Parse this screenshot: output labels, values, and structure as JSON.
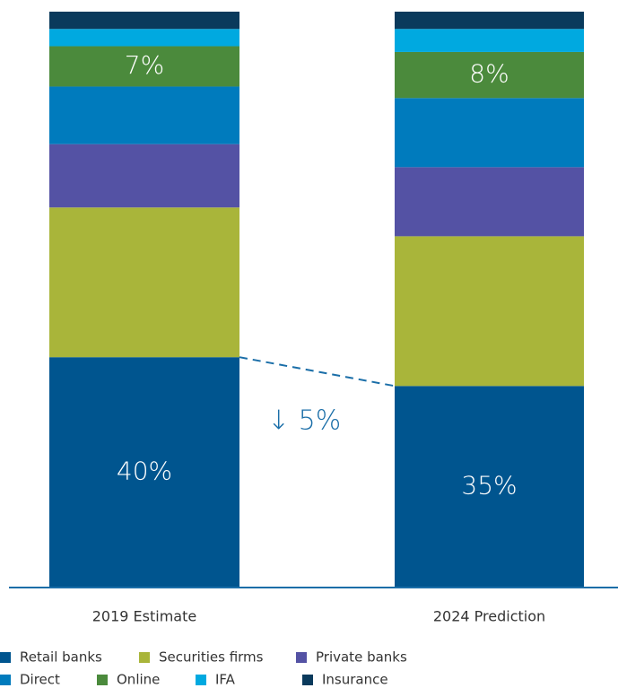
{
  "chart_data": {
    "type": "stacked_bar",
    "categories": [
      "2019 Estimate",
      "2024 Prediction"
    ],
    "series": [
      {
        "name": "Retail banks",
        "color": "#00558f",
        "values": [
          40,
          35
        ],
        "value_labels": [
          "40%",
          "35%"
        ]
      },
      {
        "name": "Securities firms",
        "color": "#a9b53a",
        "values": [
          26,
          26
        ]
      },
      {
        "name": "Private banks",
        "color": "#5452a4",
        "values": [
          11,
          12
        ]
      },
      {
        "name": "Direct",
        "color": "#007bbd",
        "values": [
          10,
          12
        ]
      },
      {
        "name": "Online",
        "color": "#4b8a3c",
        "values": [
          7,
          8
        ],
        "value_labels": [
          "7%",
          "8%"
        ]
      },
      {
        "name": "IFA",
        "color": "#00a9e0",
        "values": [
          3,
          4
        ]
      },
      {
        "name": "Insurance",
        "color": "#0a3a5c",
        "values": [
          3,
          3
        ]
      }
    ],
    "annotation": "↓ 5%",
    "ylim": [
      0,
      100
    ]
  }
}
